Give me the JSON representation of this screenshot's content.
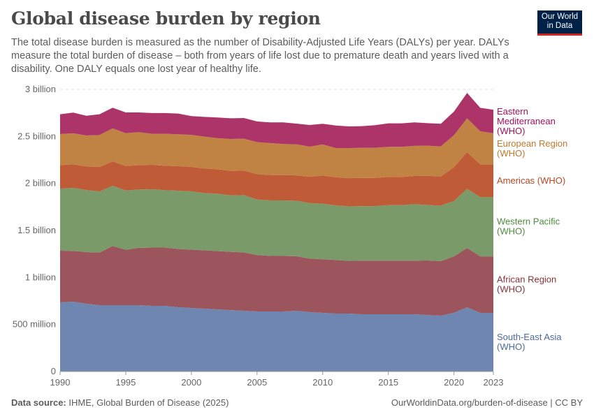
{
  "header": {
    "title": "Global disease burden by region",
    "subtitle": "The total disease burden is measured as the number of Disability-Adjusted Life Years (DALYs) per year. DALYs measure the total burden of disease – both from years of life lost due to premature death and years lived with a disability. One DALY equals one lost year of healthy life.",
    "logo_text": "Our World in Data"
  },
  "footer": {
    "source_label": "Data source:",
    "source_text": "IHME, Global Burden of Disease (2025)",
    "url_text": "OurWorldinData.org/burden-of-disease | CC BY"
  },
  "chart_data": {
    "type": "area",
    "stacked": true,
    "title": "Global disease burden by region",
    "xlabel": "",
    "ylabel": "",
    "xlim": [
      1990,
      2023
    ],
    "ylim": [
      0,
      3000000000
    ],
    "grid": "horizontal dashed",
    "legend": "right, inline labels",
    "y_ticks": [
      {
        "v": 0,
        "label": "0"
      },
      {
        "v": 500000000,
        "label": "500 million"
      },
      {
        "v": 1000000000,
        "label": "1 billion"
      },
      {
        "v": 1500000000,
        "label": "1.5 billion"
      },
      {
        "v": 2000000000,
        "label": "2 billion"
      },
      {
        "v": 2500000000,
        "label": "2.5 billion"
      },
      {
        "v": 3000000000,
        "label": "3 billion"
      }
    ],
    "x_ticks": [
      {
        "v": 1990,
        "label": "1990"
      },
      {
        "v": 1995,
        "label": "1995"
      },
      {
        "v": 2000,
        "label": "2000"
      },
      {
        "v": 2005,
        "label": "2005"
      },
      {
        "v": 2010,
        "label": "2010"
      },
      {
        "v": 2015,
        "label": "2015"
      },
      {
        "v": 2020,
        "label": "2020"
      },
      {
        "v": 2023,
        "label": "2023"
      }
    ],
    "x": [
      1990,
      1991,
      1992,
      1993,
      1994,
      1995,
      1996,
      1997,
      1998,
      1999,
      2000,
      2001,
      2002,
      2003,
      2004,
      2005,
      2006,
      2007,
      2008,
      2009,
      2010,
      2011,
      2012,
      2013,
      2014,
      2015,
      2016,
      2017,
      2018,
      2019,
      2020,
      2021,
      2022,
      2023
    ],
    "unit": "billion DALYs",
    "series": [
      {
        "name": "South-East Asia (WHO)",
        "color": "#6e86b0",
        "label_color": "#4c6a9c",
        "values": [
          0.735,
          0.743,
          0.72,
          0.705,
          0.705,
          0.705,
          0.705,
          0.698,
          0.698,
          0.683,
          0.676,
          0.668,
          0.661,
          0.653,
          0.646,
          0.639,
          0.639,
          0.639,
          0.646,
          0.631,
          0.624,
          0.616,
          0.616,
          0.609,
          0.609,
          0.609,
          0.609,
          0.609,
          0.601,
          0.594,
          0.624,
          0.683,
          0.624,
          0.624
        ]
      },
      {
        "name": "African Region (WHO)",
        "color": "#9c555c",
        "label_color": "#883039",
        "values": [
          0.55,
          0.54,
          0.55,
          0.56,
          0.63,
          0.59,
          0.61,
          0.62,
          0.62,
          0.62,
          0.62,
          0.62,
          0.62,
          0.62,
          0.62,
          0.6,
          0.59,
          0.59,
          0.58,
          0.57,
          0.57,
          0.57,
          0.56,
          0.57,
          0.57,
          0.57,
          0.57,
          0.57,
          0.58,
          0.58,
          0.6,
          0.63,
          0.6,
          0.6
        ]
      },
      {
        "name": "Western Pacific (WHO)",
        "color": "#7a9a6a",
        "label_color": "#4e8a3e",
        "values": [
          0.66,
          0.67,
          0.66,
          0.65,
          0.64,
          0.63,
          0.62,
          0.62,
          0.61,
          0.62,
          0.62,
          0.61,
          0.61,
          0.6,
          0.61,
          0.59,
          0.59,
          0.59,
          0.59,
          0.59,
          0.59,
          0.58,
          0.58,
          0.58,
          0.58,
          0.59,
          0.59,
          0.6,
          0.59,
          0.59,
          0.59,
          0.63,
          0.63,
          0.63
        ]
      },
      {
        "name": "Americas (WHO)",
        "color": "#c05b37",
        "label_color": "#b84620",
        "values": [
          0.25,
          0.25,
          0.25,
          0.26,
          0.26,
          0.26,
          0.26,
          0.26,
          0.26,
          0.26,
          0.26,
          0.26,
          0.26,
          0.26,
          0.26,
          0.27,
          0.27,
          0.27,
          0.27,
          0.28,
          0.3,
          0.3,
          0.3,
          0.3,
          0.3,
          0.3,
          0.3,
          0.3,
          0.31,
          0.31,
          0.36,
          0.39,
          0.35,
          0.35
        ]
      },
      {
        "name": "European Region (WHO)",
        "color": "#c08343",
        "label_color": "#c0782a",
        "values": [
          0.33,
          0.33,
          0.33,
          0.34,
          0.35,
          0.35,
          0.35,
          0.33,
          0.34,
          0.34,
          0.34,
          0.34,
          0.33,
          0.34,
          0.34,
          0.34,
          0.34,
          0.33,
          0.33,
          0.32,
          0.33,
          0.31,
          0.32,
          0.32,
          0.32,
          0.32,
          0.32,
          0.32,
          0.32,
          0.32,
          0.34,
          0.36,
          0.35,
          0.33
        ]
      },
      {
        "name": "Eastern Mediterranean (WHO)",
        "color": "#ad3469",
        "label_color": "#a2105a",
        "values": [
          0.21,
          0.22,
          0.21,
          0.22,
          0.22,
          0.22,
          0.21,
          0.22,
          0.22,
          0.22,
          0.2,
          0.21,
          0.22,
          0.22,
          0.22,
          0.22,
          0.22,
          0.23,
          0.22,
          0.23,
          0.22,
          0.24,
          0.23,
          0.23,
          0.24,
          0.25,
          0.25,
          0.25,
          0.24,
          0.24,
          0.25,
          0.27,
          0.25,
          0.25
        ]
      }
    ]
  }
}
